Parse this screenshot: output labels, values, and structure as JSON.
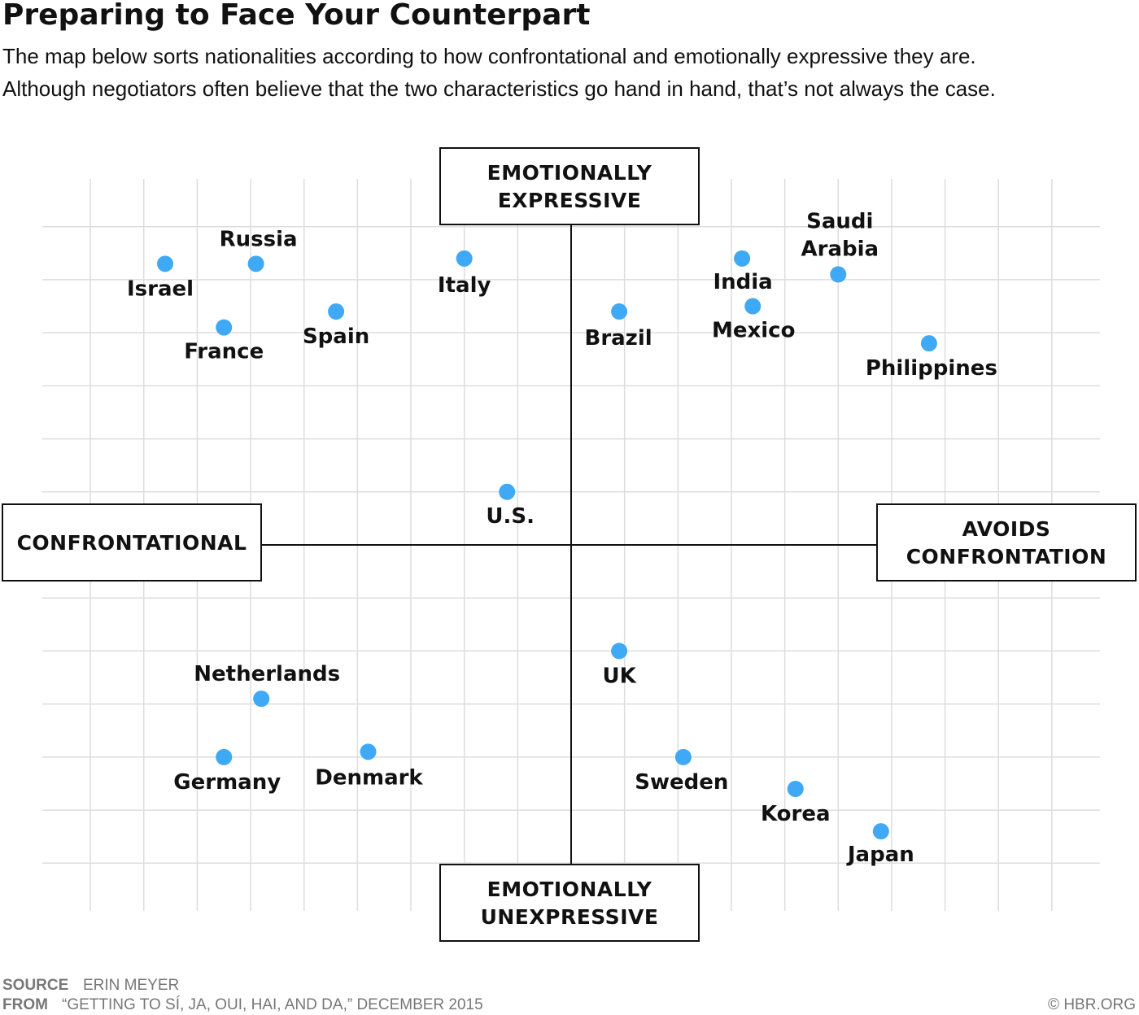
{
  "title": "Preparing to Face Your Counterpart",
  "subtitle": [
    "The map below sorts nationalities according to how confrontational and emotionally expressive they are.",
    "Although negotiators often believe that the two characteristics go hand in hand, that’s not always the case."
  ],
  "chart_data": {
    "type": "scatter",
    "axis_labels": {
      "top": "EMOTIONALLY EXPRESSIVE",
      "bottom": "EMOTIONALLY UNEXPRESSIVE",
      "left": "CONFRONTATIONAL",
      "right": "AVOIDS CONFRONTATION"
    },
    "labels": [
      "Israel",
      "Russia",
      "France",
      "Spain",
      "Italy",
      "U.S.",
      "Brazil",
      "India",
      "Mexico",
      "Saudi Arabia",
      "Philippines",
      "Netherlands",
      "Germany",
      "Denmark",
      "UK",
      "Sweden",
      "Korea",
      "Japan"
    ],
    "x": [
      -7.6,
      -5.9,
      -6.5,
      -4.4,
      -2.0,
      -1.2,
      0.9,
      3.2,
      3.4,
      5.0,
      6.7,
      -5.8,
      -6.5,
      -3.8,
      0.9,
      2.1,
      4.2,
      5.8
    ],
    "values": [
      5.3,
      5.3,
      4.1,
      4.4,
      5.4,
      1.0,
      4.4,
      5.4,
      4.5,
      5.1,
      3.8,
      -2.9,
      -4.0,
      -3.9,
      -2.0,
      -4.0,
      -4.6,
      -5.4
    ],
    "color": "#3fa9f5",
    "xlim": [
      -9.9,
      9.9
    ],
    "ylim": [
      -6.9,
      6.9
    ],
    "xticks": [
      -9,
      -8,
      -7,
      -6,
      -5,
      -4,
      -3,
      -2,
      -1,
      0,
      1,
      2,
      3,
      4,
      5,
      6,
      7,
      8,
      9
    ],
    "yticks": [
      -6,
      -5,
      -4,
      -3,
      -2,
      -1,
      0,
      1,
      2,
      3,
      4,
      5,
      6
    ],
    "grid": true
  },
  "footer": {
    "source_label": "SOURCE",
    "source": "ERIN MEYER",
    "from_label": "FROM",
    "from": "“GETTING TO SÍ, JA, OUI, HAI, AND DA,” DECEMBER 2015",
    "credit": "© HBR.ORG"
  }
}
